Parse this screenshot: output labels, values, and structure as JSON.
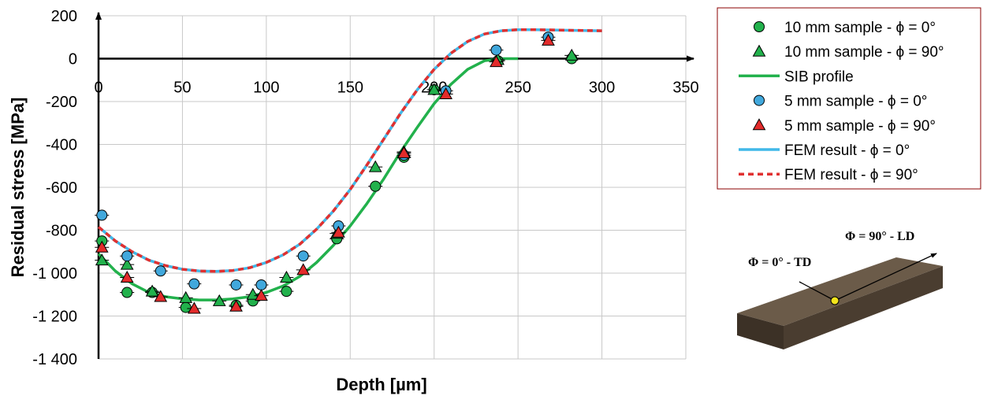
{
  "chart_data": {
    "type": "scatter",
    "xlabel": "Depth [µm]",
    "ylabel": "Residual stress [MPa]",
    "xlim": [
      0,
      350
    ],
    "ylim": [
      -1400,
      200
    ],
    "x_ticks": [
      0,
      50,
      100,
      150,
      200,
      250,
      300,
      350
    ],
    "x_tick_labels": [
      "0",
      "50",
      "100",
      "150",
      "200",
      "250",
      "300",
      "350"
    ],
    "y_ticks": [
      200,
      0,
      -200,
      -400,
      -600,
      -800,
      -1000,
      -1200,
      -1400
    ],
    "y_tick_labels": [
      "200",
      "0",
      "-200",
      "-400",
      "-600",
      "-800",
      "-1 000",
      "-1 200",
      "-1 400"
    ],
    "grid": true,
    "legend_position": "top-right",
    "series": [
      {
        "name": "10 mm sample - ϕ = 0°",
        "kind": "marker",
        "marker": "circle",
        "color": "#22b14c",
        "x": [
          2,
          17,
          32,
          52,
          82,
          92,
          112,
          142,
          165,
          182,
          200,
          238,
          282
        ],
        "y": [
          -850,
          -1090,
          -1090,
          -1160,
          -1150,
          -1130,
          -1085,
          -840,
          -595,
          -460,
          -145,
          -10,
          0
        ]
      },
      {
        "name": "10 mm sample - ϕ = 90°",
        "kind": "marker",
        "marker": "triangle",
        "color": "#22b14c",
        "x": [
          2,
          17,
          32,
          52,
          72,
          92,
          112,
          142,
          165,
          182,
          200,
          238,
          282
        ],
        "y": [
          -940,
          -960,
          -1085,
          -1115,
          -1130,
          -1100,
          -1020,
          -815,
          -505,
          -435,
          -145,
          -5,
          15
        ]
      },
      {
        "name": "SIB profile",
        "kind": "line",
        "style": "solid",
        "color": "#22b14c",
        "x": [
          0,
          10,
          20,
          30,
          40,
          50,
          60,
          70,
          80,
          90,
          100,
          110,
          120,
          130,
          140,
          150,
          160,
          170,
          180,
          190,
          200,
          210,
          220,
          230,
          240,
          250
        ],
        "y": [
          -910,
          -990,
          -1050,
          -1090,
          -1110,
          -1120,
          -1125,
          -1125,
          -1120,
          -1110,
          -1090,
          -1060,
          -1015,
          -950,
          -870,
          -780,
          -675,
          -560,
          -435,
          -320,
          -210,
          -120,
          -50,
          -10,
          0,
          0
        ]
      },
      {
        "name": "5 mm sample - ϕ = 0°",
        "kind": "marker",
        "marker": "circle",
        "color": "#41a8dc",
        "x": [
          2,
          17,
          37,
          57,
          82,
          97,
          122,
          143,
          182,
          207,
          237,
          268
        ],
        "y": [
          -730,
          -920,
          -990,
          -1050,
          -1055,
          -1055,
          -920,
          -780,
          -450,
          -150,
          40,
          100
        ]
      },
      {
        "name": "5 mm sample - ϕ = 90°",
        "kind": "marker",
        "marker": "triangle",
        "color": "#e32b2b",
        "x": [
          2,
          17,
          37,
          57,
          82,
          97,
          122,
          143,
          182,
          207,
          237,
          268
        ],
        "y": [
          -880,
          -1020,
          -1110,
          -1165,
          -1155,
          -1105,
          -985,
          -810,
          -440,
          -165,
          -15,
          85
        ]
      },
      {
        "name": "FEM result - ϕ = 0°",
        "kind": "line",
        "style": "solid",
        "color": "#41b8e8",
        "x": [
          0,
          10,
          20,
          30,
          40,
          50,
          60,
          70,
          80,
          90,
          100,
          110,
          120,
          130,
          140,
          150,
          160,
          170,
          180,
          190,
          200,
          210,
          220,
          230,
          240,
          250,
          260,
          280,
          300
        ],
        "y": [
          -785,
          -850,
          -900,
          -940,
          -965,
          -982,
          -990,
          -992,
          -988,
          -975,
          -950,
          -915,
          -865,
          -795,
          -710,
          -610,
          -495,
          -375,
          -255,
          -145,
          -50,
          25,
          80,
          115,
          130,
          135,
          135,
          132,
          130
        ]
      },
      {
        "name": "FEM result - ϕ = 90°",
        "kind": "line",
        "style": "dashed",
        "color": "#e03030",
        "x": [
          0,
          10,
          20,
          30,
          40,
          50,
          60,
          70,
          80,
          90,
          100,
          110,
          120,
          130,
          140,
          150,
          160,
          170,
          180,
          190,
          200,
          210,
          220,
          230,
          240,
          250,
          260,
          280,
          300
        ],
        "y": [
          -785,
          -850,
          -900,
          -940,
          -965,
          -982,
          -990,
          -992,
          -988,
          -975,
          -950,
          -915,
          -865,
          -795,
          -710,
          -610,
          -495,
          -375,
          -255,
          -145,
          -50,
          25,
          80,
          115,
          130,
          135,
          135,
          132,
          130
        ]
      }
    ]
  },
  "inset": {
    "label_phi0": "Φ = 0° - TD",
    "label_phi90": "Φ = 90° - LD",
    "block_color": "#5a4d3d",
    "point_color": "#f3e41c"
  }
}
